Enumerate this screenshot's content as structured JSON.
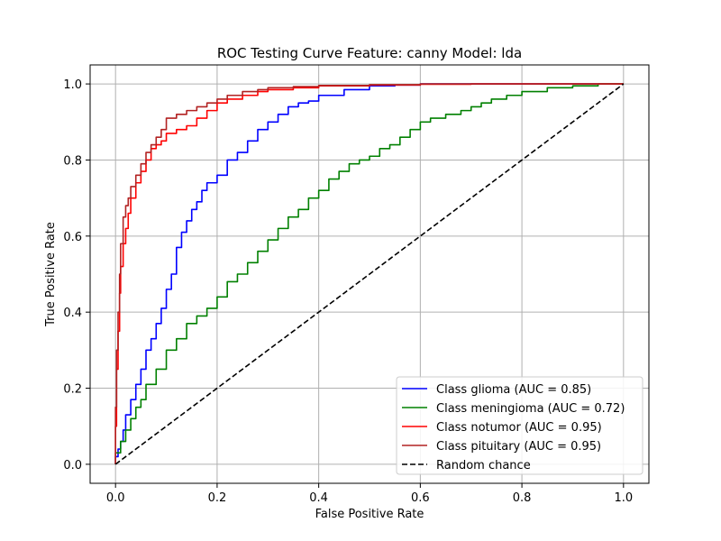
{
  "chart_data": {
    "type": "line",
    "title": "ROC Testing Curve Feature: canny Model: lda",
    "xlabel": "False Positive Rate",
    "ylabel": "True Positive Rate",
    "xlim": [
      -0.05,
      1.05
    ],
    "ylim": [
      -0.05,
      1.05
    ],
    "xticks": [
      0.0,
      0.2,
      0.4,
      0.6,
      0.8,
      1.0
    ],
    "yticks": [
      0.0,
      0.2,
      0.4,
      0.6,
      0.8,
      1.0
    ],
    "xtick_labels": [
      "0.0",
      "0.2",
      "0.4",
      "0.6",
      "0.8",
      "1.0"
    ],
    "ytick_labels": [
      "0.0",
      "0.2",
      "0.4",
      "0.6",
      "0.8",
      "1.0"
    ],
    "grid": true,
    "legend_position": "lower-right",
    "series": [
      {
        "name": "Class glioma (AUC = 0.85)",
        "color": "#0000ff",
        "style": "solid",
        "x": [
          0.0,
          0.005,
          0.01,
          0.015,
          0.02,
          0.03,
          0.04,
          0.05,
          0.06,
          0.07,
          0.08,
          0.09,
          0.1,
          0.11,
          0.12,
          0.13,
          0.14,
          0.15,
          0.16,
          0.17,
          0.18,
          0.2,
          0.22,
          0.24,
          0.26,
          0.28,
          0.3,
          0.32,
          0.34,
          0.36,
          0.38,
          0.4,
          0.45,
          0.5,
          0.55,
          0.6,
          0.65,
          0.7,
          0.8,
          0.9,
          1.0
        ],
        "y": [
          0.0,
          0.02,
          0.04,
          0.06,
          0.09,
          0.13,
          0.17,
          0.21,
          0.25,
          0.3,
          0.33,
          0.37,
          0.41,
          0.46,
          0.5,
          0.57,
          0.61,
          0.64,
          0.67,
          0.69,
          0.72,
          0.74,
          0.76,
          0.8,
          0.82,
          0.85,
          0.88,
          0.9,
          0.92,
          0.94,
          0.95,
          0.955,
          0.97,
          0.985,
          0.995,
          0.997,
          1.0,
          1.0,
          1.0,
          1.0,
          1.0
        ]
      },
      {
        "name": "Class meningioma (AUC = 0.72)",
        "color": "#008000",
        "style": "solid",
        "x": [
          0.0,
          0.01,
          0.02,
          0.03,
          0.04,
          0.05,
          0.06,
          0.08,
          0.1,
          0.12,
          0.14,
          0.16,
          0.18,
          0.2,
          0.22,
          0.24,
          0.26,
          0.28,
          0.3,
          0.32,
          0.34,
          0.36,
          0.38,
          0.4,
          0.42,
          0.44,
          0.46,
          0.48,
          0.5,
          0.52,
          0.54,
          0.56,
          0.58,
          0.6,
          0.62,
          0.65,
          0.68,
          0.7,
          0.72,
          0.74,
          0.77,
          0.8,
          0.85,
          0.9,
          0.95,
          1.0
        ],
        "y": [
          0.0,
          0.03,
          0.06,
          0.09,
          0.12,
          0.15,
          0.17,
          0.21,
          0.25,
          0.3,
          0.33,
          0.37,
          0.39,
          0.41,
          0.44,
          0.48,
          0.5,
          0.53,
          0.56,
          0.59,
          0.62,
          0.65,
          0.67,
          0.7,
          0.72,
          0.75,
          0.77,
          0.79,
          0.8,
          0.81,
          0.83,
          0.84,
          0.86,
          0.88,
          0.9,
          0.91,
          0.92,
          0.93,
          0.94,
          0.95,
          0.96,
          0.97,
          0.98,
          0.99,
          0.995,
          1.0
        ]
      },
      {
        "name": "Class notumor (AUC = 0.95)",
        "color": "#ff0000",
        "style": "solid",
        "x": [
          0.0,
          0.002,
          0.005,
          0.008,
          0.01,
          0.015,
          0.02,
          0.025,
          0.03,
          0.04,
          0.05,
          0.06,
          0.07,
          0.08,
          0.09,
          0.1,
          0.12,
          0.14,
          0.16,
          0.18,
          0.2,
          0.22,
          0.25,
          0.28,
          0.3,
          0.35,
          0.4,
          0.5,
          0.6,
          0.7,
          0.8,
          0.9,
          1.0
        ],
        "y": [
          0.0,
          0.1,
          0.25,
          0.35,
          0.45,
          0.52,
          0.58,
          0.62,
          0.66,
          0.7,
          0.74,
          0.77,
          0.8,
          0.83,
          0.84,
          0.85,
          0.87,
          0.88,
          0.89,
          0.91,
          0.93,
          0.95,
          0.96,
          0.97,
          0.98,
          0.985,
          0.99,
          0.995,
          0.997,
          0.999,
          1.0,
          1.0,
          1.0
        ]
      },
      {
        "name": "Class pituitary (AUC = 0.95)",
        "color": "#b22222",
        "style": "solid",
        "x": [
          0.0,
          0.002,
          0.005,
          0.008,
          0.01,
          0.015,
          0.02,
          0.025,
          0.03,
          0.04,
          0.05,
          0.06,
          0.07,
          0.08,
          0.09,
          0.1,
          0.12,
          0.14,
          0.16,
          0.18,
          0.2,
          0.22,
          0.25,
          0.28,
          0.3,
          0.35,
          0.4,
          0.5,
          0.6,
          0.7,
          0.8,
          0.9,
          1.0
        ],
        "y": [
          0.0,
          0.15,
          0.3,
          0.4,
          0.5,
          0.58,
          0.65,
          0.68,
          0.7,
          0.73,
          0.76,
          0.79,
          0.82,
          0.84,
          0.86,
          0.88,
          0.91,
          0.92,
          0.93,
          0.94,
          0.95,
          0.96,
          0.97,
          0.98,
          0.985,
          0.99,
          0.993,
          0.996,
          0.998,
          1.0,
          1.0,
          1.0,
          1.0
        ]
      },
      {
        "name": "Random chance",
        "color": "#000000",
        "style": "dashed",
        "x": [
          0.0,
          1.0
        ],
        "y": [
          0.0,
          1.0
        ]
      }
    ]
  }
}
